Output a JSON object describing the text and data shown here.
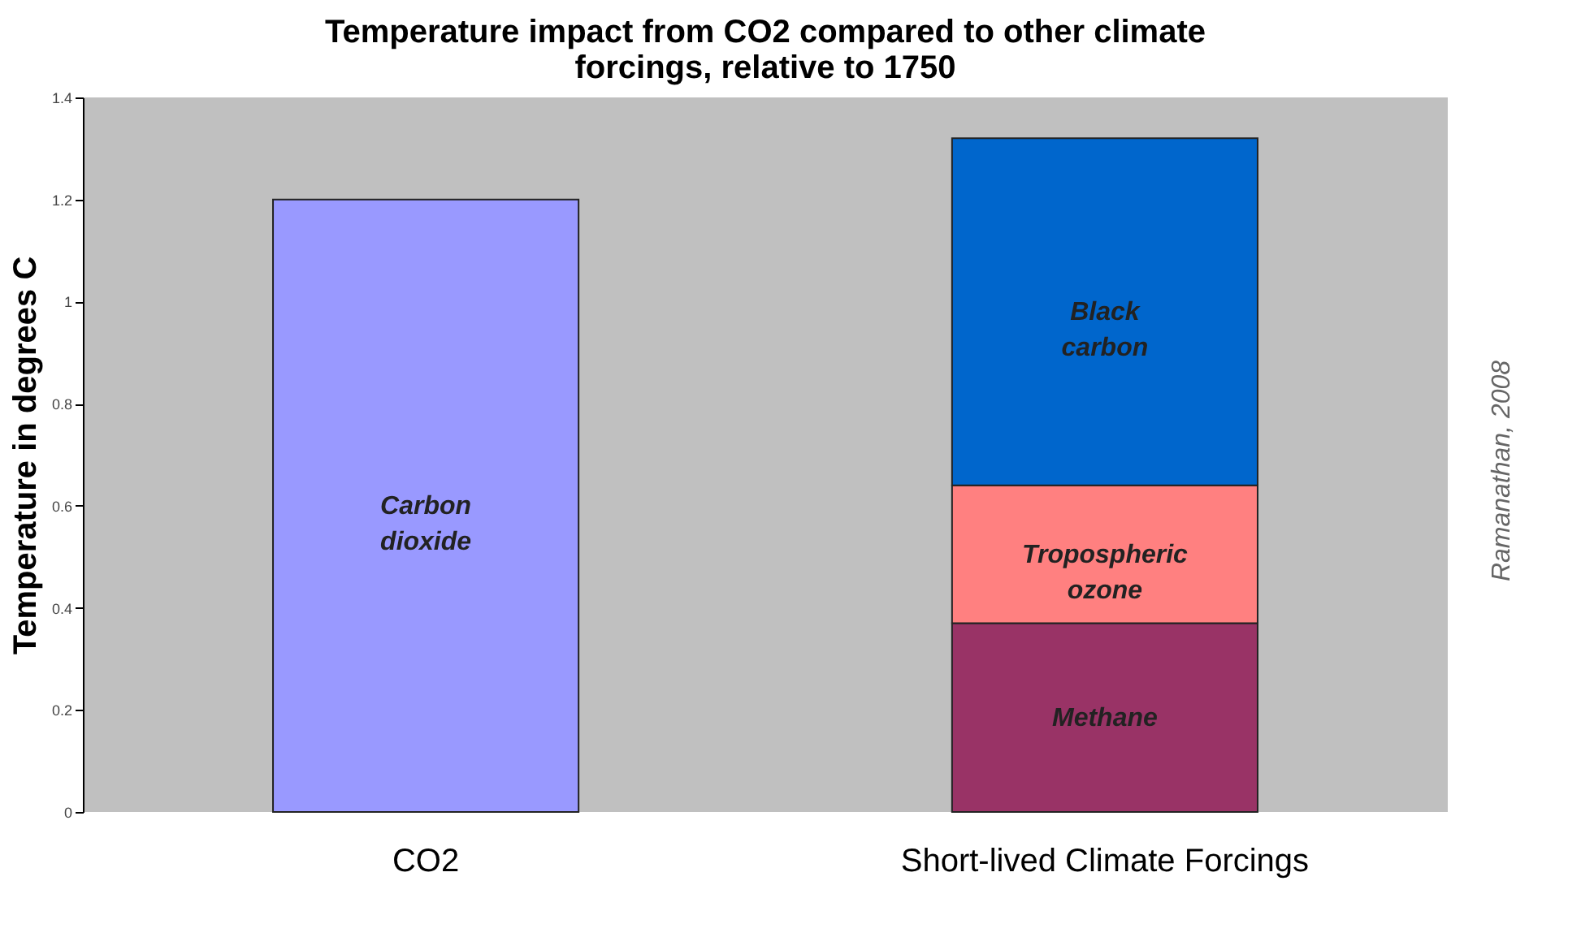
{
  "chart_data": {
    "type": "bar",
    "stacked": true,
    "title": "Temperature impact from CO2 compared to other climate forcings, relative to 1750",
    "ylabel": "Temperature in degrees C",
    "categories": [
      "CO2",
      "Short-lived Climate Forcings"
    ],
    "series": [
      {
        "name": "Carbon dioxide",
        "color": "#9999ff",
        "values": [
          1.2,
          null
        ]
      },
      {
        "name": "Methane",
        "color": "#993366",
        "values": [
          null,
          0.37
        ]
      },
      {
        "name": "Tropospheric ozone",
        "color": "#ff8080",
        "values": [
          null,
          0.27
        ]
      },
      {
        "name": "Black carbon",
        "color": "#0066cc",
        "values": [
          null,
          0.68
        ]
      }
    ],
    "ylim": [
      0,
      1.4
    ],
    "yticks": [
      0,
      0.2,
      0.4,
      0.6,
      0.8,
      1,
      1.2,
      1.4
    ],
    "grid": false,
    "legend": false,
    "annotations": [
      "Ramanathan, 2008"
    ]
  }
}
